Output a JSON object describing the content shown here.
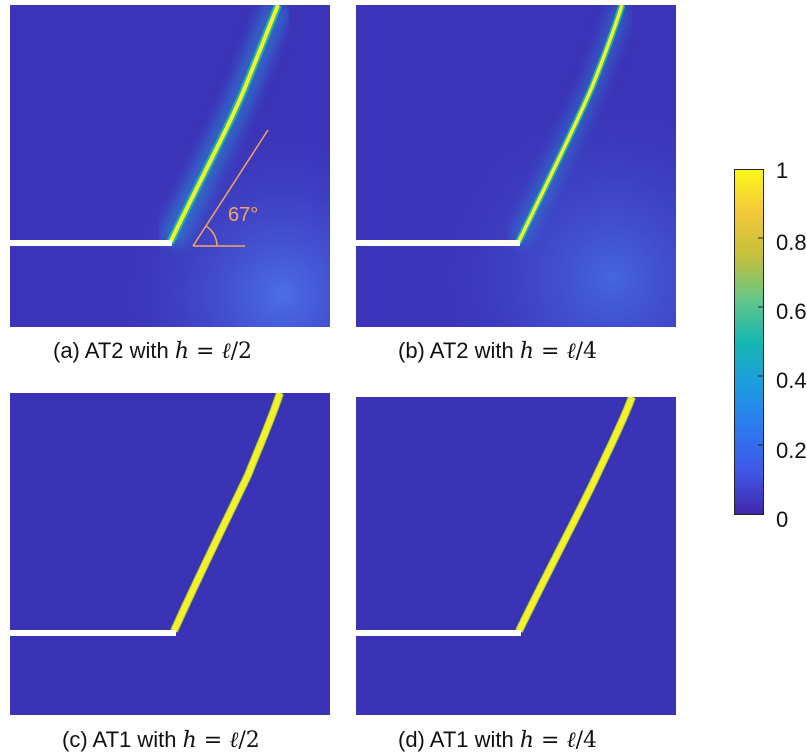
{
  "panels": [
    {
      "id": "a",
      "prefix": "(a) AT2 with ",
      "var": "h",
      "eq": " = ",
      "num": "ℓ",
      "den": "/2",
      "model": "AT2"
    },
    {
      "id": "b",
      "prefix": "(b) AT2 with ",
      "var": "h",
      "eq": " = ",
      "num": "ℓ",
      "den": "/4",
      "model": "AT2"
    },
    {
      "id": "c",
      "prefix": "(c) AT1 with ",
      "var": "h",
      "eq": " = ",
      "num": "ℓ",
      "den": "/2",
      "model": "AT1"
    },
    {
      "id": "d",
      "prefix": "(d) AT1 with ",
      "var": "h",
      "eq": " = ",
      "num": "ℓ",
      "den": "/4",
      "model": "AT1"
    }
  ],
  "annotation": {
    "angle": "67°",
    "color": "#f5a560"
  },
  "colorbar": {
    "ticks": [
      "1",
      "0.8",
      "0.6",
      "0.4",
      "0.2",
      "0"
    ],
    "colors": [
      "#fde725",
      "#f3c43a",
      "#19b3a8",
      "#2b8bd6",
      "#3a4fd6",
      "#3a2ea6"
    ]
  },
  "colors": {
    "background": "#3b33b8",
    "crack": "#f5f02a",
    "halo": "#2b9cd6",
    "notch": "#ffffff"
  }
}
